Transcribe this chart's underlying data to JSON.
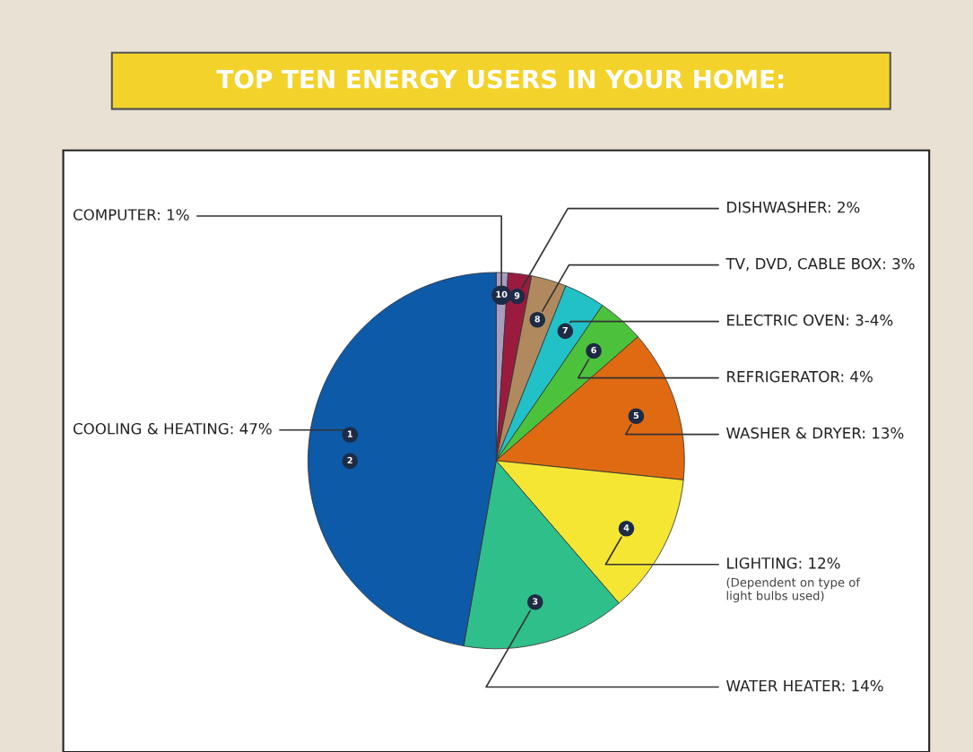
{
  "chart_data": {
    "type": "pie",
    "title": "TOP TEN ENERGY USERS IN YOUR HOME:",
    "categories": [
      "COMPUTER",
      "DISHWASHER",
      "TV, DVD, CABLE BOX",
      "ELECTRIC OVEN",
      "REFRIGERATOR",
      "WASHER & DRYER",
      "LIGHTING",
      "WATER HEATER",
      "COOLING & HEATING"
    ],
    "values": [
      1,
      2,
      3,
      3.5,
      4,
      13,
      12,
      14,
      47
    ],
    "value_labels": [
      "1%",
      "2%",
      "3%",
      "3-4%",
      "4%",
      "13%",
      "12%",
      "14%",
      "47%"
    ],
    "colors": [
      "#a99cc0",
      "#9b1b3f",
      "#b08a5e",
      "#22c1c8",
      "#4cc23c",
      "#e06a12",
      "#f5e634",
      "#2fbf8a",
      "#0d5aa8"
    ],
    "annotations": [
      {
        "text": "10",
        "x": "COMPUTER"
      },
      {
        "text": "9",
        "x": "DISHWASHER"
      },
      {
        "text": "8",
        "x": "TV, DVD, CABLE BOX"
      },
      {
        "text": "7",
        "x": "ELECTRIC OVEN"
      },
      {
        "text": "6",
        "x": "REFRIGERATOR"
      },
      {
        "text": "5",
        "x": "WASHER & DRYER"
      },
      {
        "text": "4",
        "x": "LIGHTING"
      },
      {
        "text": "3",
        "x": "WATER HEATER"
      },
      {
        "text": "1",
        "x": "COOLING & HEATING"
      },
      {
        "text": "2",
        "x": "COOLING & HEATING"
      },
      {
        "text": "(Dependent on type of\nlight bulbs used)",
        "x": "LIGHTING"
      }
    ],
    "legend": false
  }
}
